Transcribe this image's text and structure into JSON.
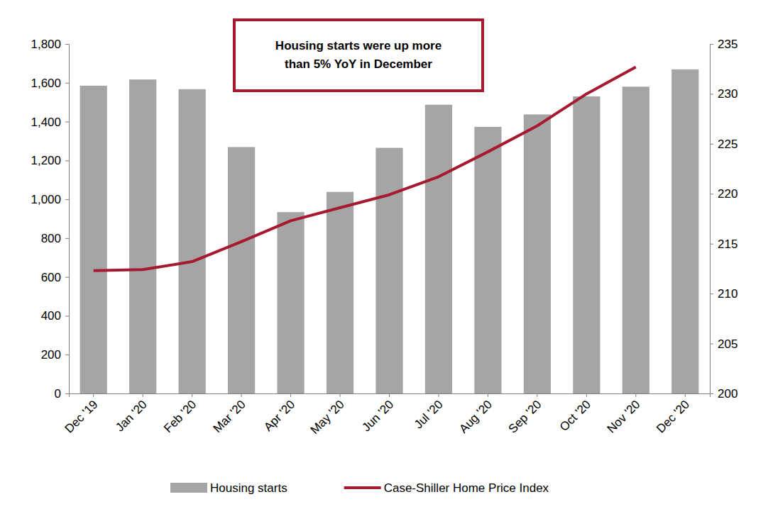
{
  "chart_data": {
    "type": "bar",
    "annotation": [
      "Housing starts were up more",
      "than 5% YoY in December"
    ],
    "categories": [
      "Dec '19",
      "Jan '20",
      "Feb '20",
      "Mar '20",
      "Apr '20",
      "May '20",
      "Jun '20",
      "Jul '20",
      "Aug '20",
      "Sep '20",
      "Oct '20",
      "Nov '20",
      "Dec '20"
    ],
    "series": [
      {
        "name": "Housing starts",
        "type": "bar",
        "color": "#a5a5a5",
        "values": [
          1585,
          1617,
          1567,
          1269,
          934,
          1038,
          1265,
          1487,
          1373,
          1437,
          1530,
          1580,
          1669
        ]
      },
      {
        "name": "Case-Shiller Home Price Index",
        "type": "line",
        "axis": "y2",
        "color": "#a6192e",
        "values": [
          212.3,
          212.4,
          213.2,
          215.2,
          217.3,
          218.6,
          219.9,
          221.7,
          224.2,
          226.8,
          230.0,
          232.7,
          null
        ]
      }
    ],
    "ylim": [
      0,
      1800
    ],
    "yticks": [
      0,
      200,
      400,
      600,
      800,
      {
        "value": 1000,
        "label": "1,000"
      },
      {
        "value": 1200,
        "label": "1,200"
      },
      {
        "value": 1400,
        "label": "1,400"
      },
      {
        "value": 1600,
        "label": "1,600"
      },
      {
        "value": 1800,
        "label": "1,800"
      }
    ],
    "y2lim": [
      200,
      235
    ],
    "y2ticks": [
      200,
      205,
      210,
      215,
      220,
      225,
      230,
      235
    ],
    "grid": false,
    "legend": "bottom"
  }
}
